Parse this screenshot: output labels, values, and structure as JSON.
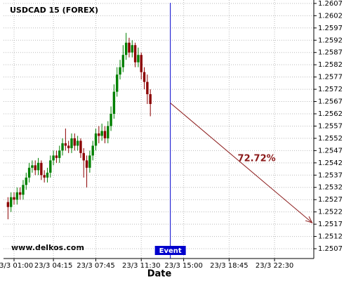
{
  "chart_data": {
    "type": "candlestick",
    "title": "USDCAD 15 (FOREX)",
    "watermark": "www.delkos.com",
    "xlabel": "Date",
    "up_color": "#008000",
    "down_color": "#8b0000",
    "grid": true,
    "xlim": [
      0.13,
      25.74
    ],
    "ylim": [
      1.2503,
      1.26084
    ],
    "xticks": [
      {
        "value": 1,
        "label": "23/3 01:00"
      },
      {
        "value": 4.25,
        "label": "23/3 04:15"
      },
      {
        "value": 7.75,
        "label": "23/3 07:45"
      },
      {
        "value": 11.5,
        "label": "23/3 11:30"
      },
      {
        "value": 15,
        "label": "23/3 15:00"
      },
      {
        "value": 18.75,
        "label": "23/3 18:45"
      },
      {
        "value": 22.5,
        "label": "23/3 22:30"
      }
    ],
    "yticks": [
      1.2607,
      1.2602,
      1.2597,
      1.2592,
      1.2587,
      1.2582,
      1.2577,
      1.2572,
      1.2567,
      1.2562,
      1.2557,
      1.2552,
      1.2547,
      1.2542,
      1.2537,
      1.2532,
      1.2527,
      1.2522,
      1.2517,
      1.2512,
      1.2507
    ],
    "x": [
      0.5,
      0.75,
      1,
      1.25,
      1.5,
      1.75,
      2,
      2.25,
      2.5,
      2.75,
      3,
      3.25,
      3.5,
      3.75,
      4,
      4.25,
      4.5,
      4.75,
      5,
      5.25,
      5.5,
      5.75,
      6,
      6.25,
      6.5,
      6.75,
      7,
      7.25,
      7.5,
      7.75,
      8,
      8.25,
      8.5,
      8.75,
      9,
      9.25,
      9.5,
      9.75,
      10,
      10.25,
      10.5,
      10.75,
      11,
      11.25,
      11.5,
      11.75,
      12,
      12.25
    ],
    "open": [
      1.2526,
      1.2524,
      1.2528,
      1.2527,
      1.253,
      1.2529,
      1.2533,
      1.2536,
      1.254,
      1.2541,
      1.2539,
      1.2542,
      1.2537,
      1.2536,
      1.2538,
      1.2543,
      1.2545,
      1.2544,
      1.2547,
      1.255,
      1.2549,
      1.2548,
      1.2552,
      1.2549,
      1.2551,
      1.2546,
      1.2543,
      1.254,
      1.2545,
      1.2549,
      1.2554,
      1.2553,
      1.2555,
      1.2552,
      1.2557,
      1.2562,
      1.2571,
      1.2578,
      1.2581,
      1.2586,
      1.2591,
      1.2587,
      1.259,
      1.2583,
      1.2586,
      1.2579,
      1.2575,
      1.257
    ],
    "high": [
      1.2528,
      1.253,
      1.253,
      1.2532,
      1.2532,
      1.2535,
      1.2538,
      1.2542,
      1.2543,
      1.2543,
      1.2544,
      1.2543,
      1.2539,
      1.254,
      1.2545,
      1.2547,
      1.2547,
      1.2549,
      1.2552,
      1.2556,
      1.2551,
      1.2554,
      1.2554,
      1.2553,
      1.2552,
      1.2548,
      1.2545,
      1.2547,
      1.2551,
      1.2556,
      1.2557,
      1.2558,
      1.2557,
      1.2559,
      1.2565,
      1.2574,
      1.2581,
      1.2584,
      1.259,
      1.2595,
      1.2593,
      1.2592,
      1.2591,
      1.2589,
      1.2587,
      1.2581,
      1.2578,
      1.2572
    ],
    "low": [
      1.2519,
      1.2522,
      1.2525,
      1.2525,
      1.2527,
      1.2527,
      1.2531,
      1.2534,
      1.2538,
      1.2537,
      1.2537,
      1.2535,
      1.2534,
      1.2534,
      1.2536,
      1.2541,
      1.2542,
      1.2542,
      1.2545,
      1.2547,
      1.2546,
      1.2546,
      1.2547,
      1.2547,
      1.2544,
      1.2536,
      1.2532,
      1.2538,
      1.2543,
      1.2547,
      1.255,
      1.2551,
      1.255,
      1.255,
      1.2555,
      1.256,
      1.2569,
      1.2576,
      1.2579,
      1.2584,
      1.2585,
      1.2585,
      1.2581,
      1.2581,
      1.2576,
      1.2572,
      1.2566,
      1.2561
    ],
    "close": [
      1.2524,
      1.2528,
      1.2527,
      1.253,
      1.2529,
      1.2533,
      1.2536,
      1.254,
      1.2541,
      1.2539,
      1.2542,
      1.2537,
      1.2536,
      1.2538,
      1.2543,
      1.2545,
      1.2544,
      1.2547,
      1.255,
      1.2549,
      1.2548,
      1.2552,
      1.2549,
      1.2551,
      1.2546,
      1.2543,
      1.254,
      1.2545,
      1.2549,
      1.2554,
      1.2553,
      1.2555,
      1.2552,
      1.2557,
      1.2562,
      1.2571,
      1.2578,
      1.2581,
      1.2586,
      1.2591,
      1.2587,
      1.259,
      1.2583,
      1.2586,
      1.2579,
      1.2575,
      1.257,
      1.2566
    ],
    "event": {
      "label": "Event",
      "x": 13.9,
      "color": "#0000cc"
    },
    "forecast": {
      "x": [
        13.9,
        25.6
      ],
      "y": [
        1.25664,
        1.25176
      ],
      "color": "#8b1a1a",
      "label": "72.72%"
    }
  }
}
